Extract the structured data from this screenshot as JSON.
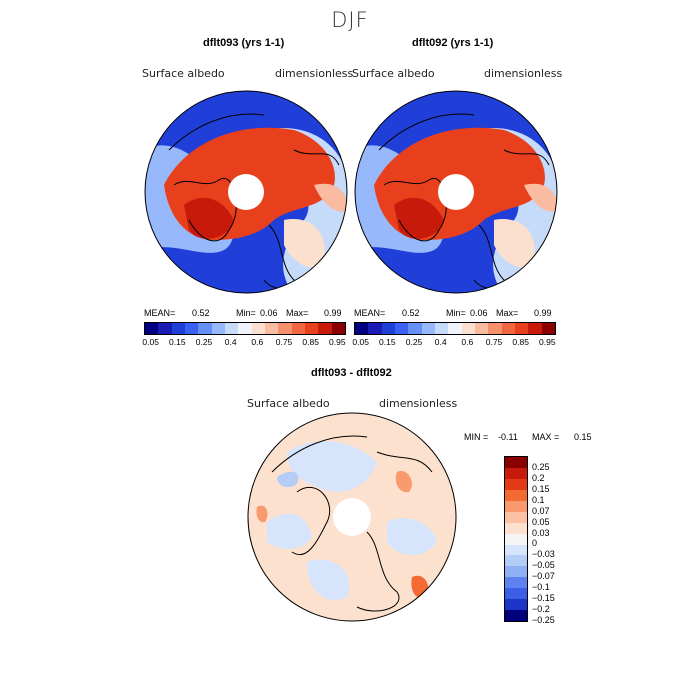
{
  "season": "DJF",
  "panels": [
    {
      "title": "dflt093 (yrs 1-1)",
      "field": "Surface albedo",
      "units": "dimensionless",
      "stats": {
        "mean_label": "MEAN=",
        "mean": "0.52",
        "min_label": "Min=",
        "min": "0.06",
        "max_label": "Max=",
        "max": "0.99"
      }
    },
    {
      "title": "dflt092 (yrs 1-1)",
      "field": "Surface albedo",
      "units": "dimensionless",
      "stats": {
        "mean_label": "MEAN=",
        "mean": "0.52",
        "min_label": "Min=",
        "min": "0.06",
        "max_label": "Max=",
        "max": "0.99"
      }
    }
  ],
  "colorbar": {
    "colors": [
      "#000080",
      "#1a1ab4",
      "#1f3fd8",
      "#3a62f2",
      "#6590f7",
      "#97b8fb",
      "#c6daf9",
      "#f0f4fa",
      "#fbe0cf",
      "#f9bca0",
      "#f7906c",
      "#f26640",
      "#e8401c",
      "#c81a0a",
      "#8a0000"
    ],
    "ticks": [
      "0.05",
      "0.15",
      "0.25",
      "0.4",
      "0.6",
      "0.75",
      "0.85",
      "0.95"
    ]
  },
  "diff": {
    "title": "dflt093 - dflt092",
    "field": "Surface albedo",
    "units": "dimensionless",
    "min_label": "MIN =",
    "min": "-0.11",
    "max_label": "MAX =",
    "max": "0.15",
    "colors": [
      "#8a0000",
      "#c81a0a",
      "#e23a14",
      "#f46a33",
      "#f89a6e",
      "#fbc1a2",
      "#fde1cf",
      "#f5f5f5",
      "#d6e5fb",
      "#b4cdf7",
      "#8fb0f3",
      "#5f83ee",
      "#3a5ee6",
      "#1c34c8",
      "#00007c"
    ],
    "labels": [
      "0.25",
      "0.2",
      "0.15",
      "0.1",
      "0.07",
      "0.05",
      "0.03",
      "0",
      "−0.03",
      "−0.05",
      "−0.07",
      "−0.1",
      "−0.15",
      "−0.2",
      "−0.25"
    ]
  }
}
